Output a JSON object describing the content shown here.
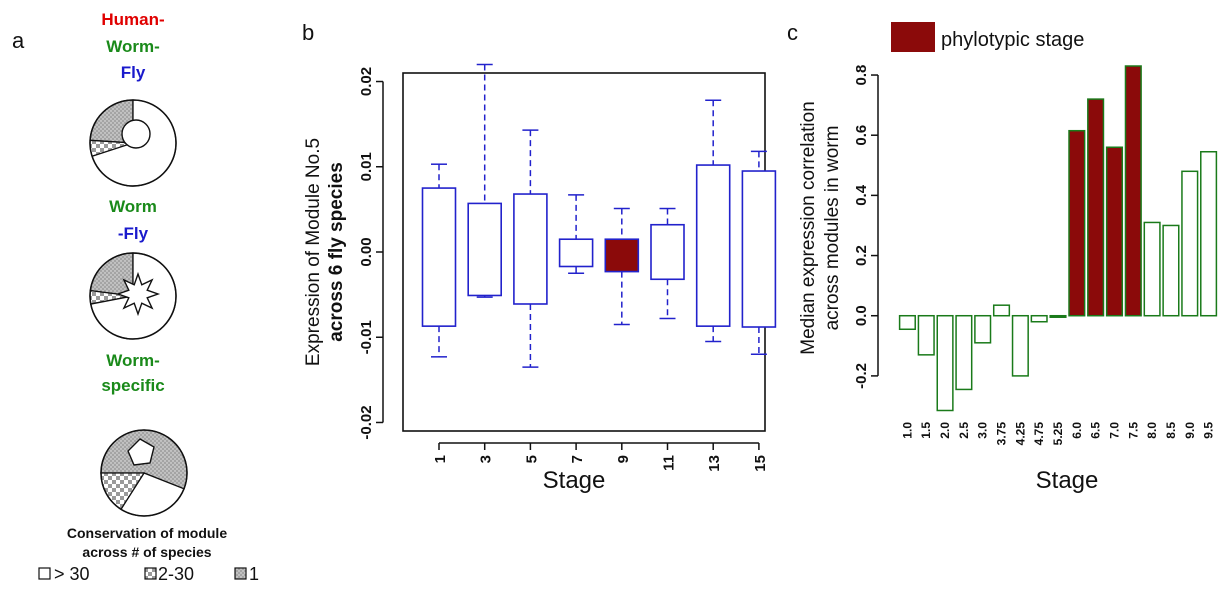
{
  "panel_a": {
    "label": "a",
    "groups": [
      {
        "title_lines": [
          {
            "text": "Human-",
            "color": "#e00000"
          },
          {
            "text": "Worm-",
            "color": "#1a8a1a"
          },
          {
            "text": "Fly",
            "color": "#1a1acc"
          }
        ],
        "slices": [
          {
            "category": ">30",
            "fraction": 0.7
          },
          {
            "category": "2-30",
            "fraction": 0.06
          },
          {
            "category": "1",
            "fraction": 0.24
          }
        ],
        "inner_shape": "circle"
      },
      {
        "title_lines": [
          {
            "text": "Worm",
            "color": "#1a8a1a"
          },
          {
            "text": "-Fly",
            "color": "#1a1acc"
          }
        ],
        "slices": [
          {
            "category": ">30",
            "fraction": 0.72
          },
          {
            "category": "2-30",
            "fraction": 0.05
          },
          {
            "category": "1",
            "fraction": 0.23
          }
        ],
        "inner_shape": "star"
      },
      {
        "title_lines": [
          {
            "text": "Worm-",
            "color": "#1a8a1a"
          },
          {
            "text": "specific",
            "color": "#1a8a1a"
          }
        ],
        "slices": [
          {
            "category": ">30",
            "fraction": 0.28
          },
          {
            "category": "2-30",
            "fraction": 0.16
          },
          {
            "category": "1",
            "fraction": 0.56
          }
        ],
        "inner_shape": "pentagon"
      }
    ],
    "legend": {
      "title_lines": [
        "Conservation of module",
        "across # of species"
      ],
      "items": [
        {
          "label": "> 30",
          "fill": "white"
        },
        {
          "label": "2-30",
          "fill": "checker"
        },
        {
          "label": "1",
          "fill": "dots"
        }
      ]
    }
  },
  "chart_data": [
    {
      "panel": "b",
      "type": "box",
      "ylabel_line1": "Expression of Module No.5",
      "ylabel_line2": "across 6 fly species",
      "xlabel": "Stage",
      "ylim": [
        -0.021,
        0.021
      ],
      "yticks": [
        -0.02,
        -0.01,
        0.0,
        0.01,
        0.02
      ],
      "ytick_labels": [
        "-0.02",
        "-0.01",
        "0.00",
        "0.01",
        "0.02"
      ],
      "stages": [
        "1",
        "3",
        "5",
        "7",
        "9",
        "11",
        "13",
        "15"
      ],
      "highlight_stage": "9",
      "box_color": "#2222cc",
      "highlight_color": "#8b0a0a",
      "boxes": [
        {
          "stage": "1",
          "whisker_low": -0.0123,
          "q1": -0.0087,
          "q3": 0.0075,
          "whisker_high": 0.0103
        },
        {
          "stage": "3",
          "whisker_low": -0.0053,
          "q1": -0.0051,
          "q3": 0.0057,
          "whisker_high": 0.022
        },
        {
          "stage": "5",
          "whisker_low": -0.0135,
          "q1": -0.0061,
          "q3": 0.0068,
          "whisker_high": 0.0143
        },
        {
          "stage": "7",
          "whisker_low": -0.0025,
          "q1": -0.0017,
          "q3": 0.0015,
          "whisker_high": 0.0067
        },
        {
          "stage": "9",
          "whisker_low": -0.0085,
          "q1": -0.0023,
          "q3": 0.0015,
          "whisker_high": 0.0051
        },
        {
          "stage": "11",
          "whisker_low": -0.0078,
          "q1": -0.0032,
          "q3": 0.0032,
          "whisker_high": 0.0051
        },
        {
          "stage": "13",
          "whisker_low": -0.0105,
          "q1": -0.0087,
          "q3": 0.0102,
          "whisker_high": 0.0178
        },
        {
          "stage": "15",
          "whisker_low": -0.012,
          "q1": -0.0088,
          "q3": 0.0095,
          "whisker_high": 0.0118
        }
      ]
    },
    {
      "panel": "c",
      "type": "bar",
      "ylabel_line1": "Median expression correlation",
      "ylabel_line2": "across modules in worm",
      "xlabel": "Stage",
      "ylim": [
        -0.32,
        0.84
      ],
      "yticks": [
        -0.2,
        0.0,
        0.2,
        0.4,
        0.6,
        0.8
      ],
      "ytick_labels": [
        "-0.2",
        "0.0",
        "0.2",
        "0.4",
        "0.6",
        "0.8"
      ],
      "legend": "phylotypic stage",
      "phylotypic_color": "#8b0a0a",
      "outline_color": "#1a7a1a",
      "categories": [
        "1.0",
        "1.5",
        "2.0",
        "2.5",
        "3.0",
        "3.75",
        "4.25",
        "4.75",
        "5.25",
        "6.0",
        "6.5",
        "7.0",
        "7.5",
        "8.0",
        "8.5",
        "9.0",
        "9.5"
      ],
      "values": [
        -0.045,
        -0.13,
        -0.315,
        -0.245,
        -0.09,
        0.035,
        -0.2,
        -0.02,
        -0.005,
        0.615,
        0.72,
        0.56,
        0.83,
        0.31,
        0.3,
        0.48,
        0.545
      ],
      "phylotypic": [
        false,
        false,
        false,
        false,
        false,
        false,
        false,
        false,
        false,
        true,
        true,
        true,
        true,
        false,
        false,
        false,
        false
      ]
    }
  ]
}
